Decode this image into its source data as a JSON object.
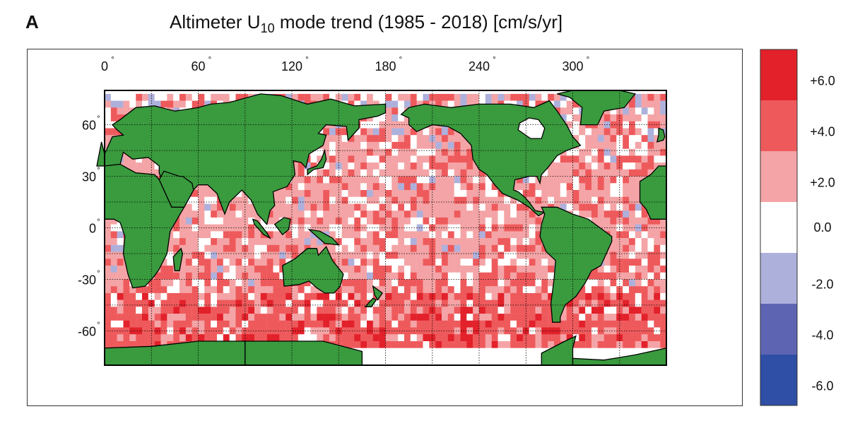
{
  "panel": {
    "letter": "A",
    "title_prefix": "Altimeter U",
    "title_subscript": "10",
    "title_suffix": " mode trend (1985 - 2018) [cm/s/yr]"
  },
  "map": {
    "lon_ticks": [
      {
        "label": "0",
        "lon": 0
      },
      {
        "label": "60",
        "lon": 60
      },
      {
        "label": "120",
        "lon": 120
      },
      {
        "label": "180",
        "lon": 180
      },
      {
        "label": "240",
        "lon": 240
      },
      {
        "label": "300",
        "lon": 300
      }
    ],
    "lat_ticks": [
      {
        "label": "60",
        "lat": 60
      },
      {
        "label": "30",
        "lat": 30
      },
      {
        "label": "0",
        "lat": 0
      },
      {
        "label": "-30",
        "lat": -30
      },
      {
        "label": "-60",
        "lat": -60
      }
    ],
    "degree_symbol": "°",
    "land_color": "#3a9a3e",
    "coast_color": "#000000"
  },
  "colorbar": {
    "labels": [
      "+6.0",
      "+4.0",
      "+2.0",
      "0.0",
      "-2.0",
      "-4.0",
      "-6.0"
    ],
    "colors": [
      "#e2212a",
      "#ee5a5c",
      "#f4a4a6",
      "#ffffff",
      "#aeb0dc",
      "#5d65b3",
      "#2f4ea5"
    ]
  }
}
